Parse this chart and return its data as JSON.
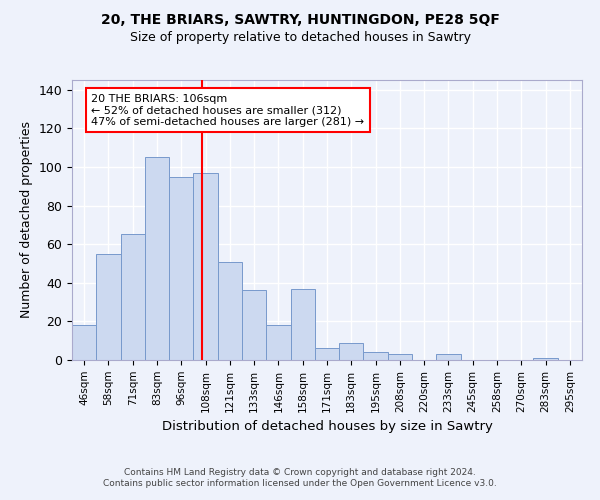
{
  "title1": "20, THE BRIARS, SAWTRY, HUNTINGDON, PE28 5QF",
  "title2": "Size of property relative to detached houses in Sawtry",
  "xlabel": "Distribution of detached houses by size in Sawtry",
  "ylabel": "Number of detached properties",
  "categories": [
    "46sqm",
    "58sqm",
    "71sqm",
    "83sqm",
    "96sqm",
    "108sqm",
    "121sqm",
    "133sqm",
    "146sqm",
    "158sqm",
    "171sqm",
    "183sqm",
    "195sqm",
    "208sqm",
    "220sqm",
    "233sqm",
    "245sqm",
    "258sqm",
    "270sqm",
    "283sqm",
    "295sqm"
  ],
  "values": [
    18,
    55,
    65,
    105,
    95,
    97,
    51,
    36,
    18,
    37,
    6,
    9,
    4,
    3,
    0,
    3,
    0,
    0,
    0,
    1,
    0
  ],
  "bar_color": "#ccd9f0",
  "bar_edge_color": "#7799cc",
  "vline_color": "red",
  "annotation_title": "20 THE BRIARS: 106sqm",
  "annotation_line1": "← 52% of detached houses are smaller (312)",
  "annotation_line2": "47% of semi-detached houses are larger (281) →",
  "annotation_box_edge": "red",
  "ylim": [
    0,
    145
  ],
  "yticks": [
    0,
    20,
    40,
    60,
    80,
    100,
    120,
    140
  ],
  "footer1": "Contains HM Land Registry data © Crown copyright and database right 2024.",
  "footer2": "Contains public sector information licensed under the Open Government Licence v3.0.",
  "bg_color": "#eef2fb",
  "grid_color": "#ffffff",
  "bar_width": 1.0
}
